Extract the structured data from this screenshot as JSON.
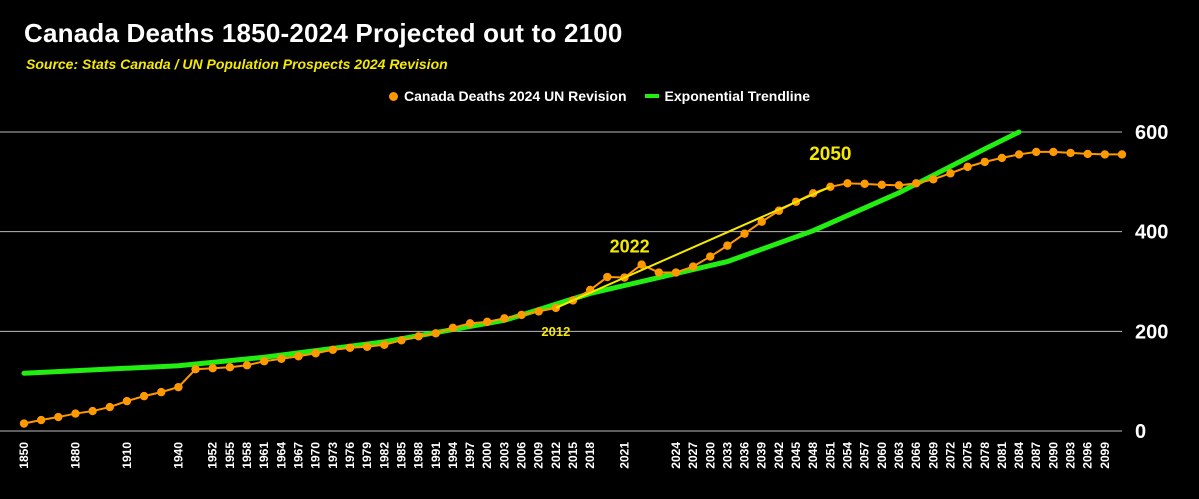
{
  "title": "Canada Deaths 1850-2024 Projected out to 2100",
  "subtitle": "Source: Stats Canada / UN Population Prospects 2024 Revision",
  "colors": {
    "deaths": "#ff9900",
    "trend": "#22ee11",
    "annotation": "#f5e900",
    "grid": "#bbbbbb",
    "text": "#ffffff"
  },
  "chart_data": {
    "type": "line",
    "title": "Canada Deaths 1850-2024 Projected out to 2100",
    "subtitle": "Source: Stats Canada / UN Population Prospects 2024 Revision",
    "ylim": [
      0,
      600
    ],
    "y_ticks": [
      0,
      200,
      400,
      600
    ],
    "grid": true,
    "legend_position": "top-center",
    "x_tick_labels": [
      "1850",
      "1880",
      "1910",
      "1940",
      "1952",
      "1955",
      "1958",
      "1961",
      "1964",
      "1967",
      "1970",
      "1973",
      "1976",
      "1979",
      "1982",
      "1985",
      "1988",
      "1991",
      "1994",
      "1997",
      "2000",
      "2003",
      "2006",
      "2009",
      "2012",
      "2015",
      "2018",
      "2021",
      "2024",
      "2027",
      "2030",
      "2033",
      "2036",
      "2039",
      "2042",
      "2045",
      "2048",
      "2051",
      "2054",
      "2057",
      "2060",
      "2063",
      "2066",
      "2069",
      "2072",
      "2075",
      "2078",
      "2081",
      "2084",
      "2087",
      "2090",
      "2093",
      "2096",
      "2099"
    ],
    "series": [
      {
        "name": "Canada Deaths 2024 UN Revision",
        "style": "line-markers",
        "points": [
          [
            "1850",
            15
          ],
          [
            "1860",
            22
          ],
          [
            "1870",
            28
          ],
          [
            "1880",
            35
          ],
          [
            "1890",
            40
          ],
          [
            "1900",
            48
          ],
          [
            "1910",
            60
          ],
          [
            "1920",
            70
          ],
          [
            "1930",
            78
          ],
          [
            "1940",
            88
          ],
          [
            "1950",
            124
          ],
          [
            "1952",
            126
          ],
          [
            "1955",
            128
          ],
          [
            "1958",
            132
          ],
          [
            "1961",
            140
          ],
          [
            "1964",
            145
          ],
          [
            "1967",
            150
          ],
          [
            "1970",
            156
          ],
          [
            "1973",
            163
          ],
          [
            "1976",
            167
          ],
          [
            "1979",
            169
          ],
          [
            "1982",
            173
          ],
          [
            "1985",
            182
          ],
          [
            "1988",
            190
          ],
          [
            "1991",
            196
          ],
          [
            "1994",
            207
          ],
          [
            "1997",
            216
          ],
          [
            "2000",
            219
          ],
          [
            "2003",
            226
          ],
          [
            "2006",
            233
          ],
          [
            "2009",
            240
          ],
          [
            "2012",
            247
          ],
          [
            "2015",
            262
          ],
          [
            "2018",
            283
          ],
          [
            "2020",
            309
          ],
          [
            "2021",
            308
          ],
          [
            "2022",
            334
          ],
          [
            "2023",
            318
          ],
          [
            "2024",
            318
          ],
          [
            "2027",
            330
          ],
          [
            "2030",
            350
          ],
          [
            "2033",
            372
          ],
          [
            "2036",
            396
          ],
          [
            "2039",
            420
          ],
          [
            "2042",
            442
          ],
          [
            "2045",
            460
          ],
          [
            "2048",
            477
          ],
          [
            "2051",
            490
          ],
          [
            "2054",
            497
          ],
          [
            "2057",
            496
          ],
          [
            "2060",
            494
          ],
          [
            "2063",
            493
          ],
          [
            "2066",
            497
          ],
          [
            "2069",
            505
          ],
          [
            "2072",
            517
          ],
          [
            "2075",
            530
          ],
          [
            "2078",
            540
          ],
          [
            "2081",
            548
          ],
          [
            "2084",
            555
          ],
          [
            "2087",
            560
          ],
          [
            "2090",
            560
          ],
          [
            "2093",
            558
          ],
          [
            "2096",
            556
          ],
          [
            "2099",
            555
          ],
          [
            "2100",
            555
          ]
        ]
      },
      {
        "name": "Exponential Trendline",
        "style": "line",
        "points": [
          [
            "1850",
            116
          ],
          [
            "1940",
            131
          ],
          [
            "1961",
            148
          ],
          [
            "1982",
            179
          ],
          [
            "2003",
            222
          ],
          [
            "2018",
            276
          ],
          [
            "2033",
            340
          ],
          [
            "2048",
            402
          ],
          [
            "2063",
            478
          ],
          [
            "2078",
            566
          ],
          [
            "2084",
            600
          ]
        ]
      }
    ],
    "annotations": [
      {
        "text": "2022"
      },
      {
        "text": "2050"
      },
      {
        "text": "2012"
      }
    ],
    "annotation_segment": {
      "from": [
        "2012",
        247
      ],
      "to": [
        "2051",
        490
      ]
    }
  }
}
